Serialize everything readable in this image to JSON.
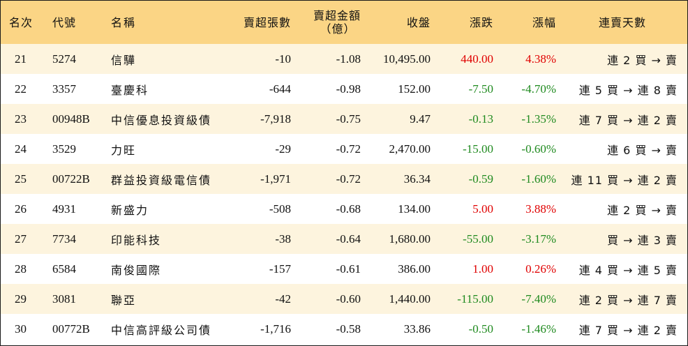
{
  "headers": {
    "rank": "名次",
    "code": "代號",
    "name": "名稱",
    "net_sell_lots": "賣超張數",
    "net_sell_amount_line1": "賣超金額",
    "net_sell_amount_line2": "（億）",
    "close": "收盤",
    "change": "漲跌",
    "change_pct": "漲幅",
    "streak": "連賣天數"
  },
  "colors": {
    "header_bg": "#fbd585",
    "stripe_bg": "#fdf4de",
    "up": "#e00000",
    "down": "#1f8a1f"
  },
  "rows": [
    {
      "rank": "21",
      "code": "5274",
      "name": "信驊",
      "lots": "-10",
      "amount": "-1.08",
      "close": "10,495.00",
      "change": "440.00",
      "pct": "4.38%",
      "streak": "連 2 買 → 賣",
      "dir": "up"
    },
    {
      "rank": "22",
      "code": "3357",
      "name": "臺慶科",
      "lots": "-644",
      "amount": "-0.98",
      "close": "152.00",
      "change": "-7.50",
      "pct": "-4.70%",
      "streak": "連 5 買 → 連 8 賣",
      "dir": "down"
    },
    {
      "rank": "23",
      "code": "00948B",
      "name": "中信優息投資級債",
      "lots": "-7,918",
      "amount": "-0.75",
      "close": "9.47",
      "change": "-0.13",
      "pct": "-1.35%",
      "streak": "連 7 買 → 連 2 賣",
      "dir": "down"
    },
    {
      "rank": "24",
      "code": "3529",
      "name": "力旺",
      "lots": "-29",
      "amount": "-0.72",
      "close": "2,470.00",
      "change": "-15.00",
      "pct": "-0.60%",
      "streak": "連 6 買 → 賣",
      "dir": "down"
    },
    {
      "rank": "25",
      "code": "00722B",
      "name": "群益投資級電信債",
      "lots": "-1,971",
      "amount": "-0.72",
      "close": "36.34",
      "change": "-0.59",
      "pct": "-1.60%",
      "streak": "連 11 買 → 連 2 賣",
      "dir": "down"
    },
    {
      "rank": "26",
      "code": "4931",
      "name": "新盛力",
      "lots": "-508",
      "amount": "-0.68",
      "close": "134.00",
      "change": "5.00",
      "pct": "3.88%",
      "streak": "連 2 買 → 賣",
      "dir": "up"
    },
    {
      "rank": "27",
      "code": "7734",
      "name": "印能科技",
      "lots": "-38",
      "amount": "-0.64",
      "close": "1,680.00",
      "change": "-55.00",
      "pct": "-3.17%",
      "streak": "買 → 連 3 賣",
      "dir": "down"
    },
    {
      "rank": "28",
      "code": "6584",
      "name": "南俊國際",
      "lots": "-157",
      "amount": "-0.61",
      "close": "386.00",
      "change": "1.00",
      "pct": "0.26%",
      "streak": "連 4 買 → 連 5 賣",
      "dir": "up"
    },
    {
      "rank": "29",
      "code": "3081",
      "name": "聯亞",
      "lots": "-42",
      "amount": "-0.60",
      "close": "1,440.00",
      "change": "-115.00",
      "pct": "-7.40%",
      "streak": "連 2 買 → 連 7 賣",
      "dir": "down"
    },
    {
      "rank": "30",
      "code": "00772B",
      "name": "中信高評級公司債",
      "lots": "-1,716",
      "amount": "-0.58",
      "close": "33.86",
      "change": "-0.50",
      "pct": "-1.46%",
      "streak": "連 7 買 → 連 2 賣",
      "dir": "down"
    }
  ]
}
